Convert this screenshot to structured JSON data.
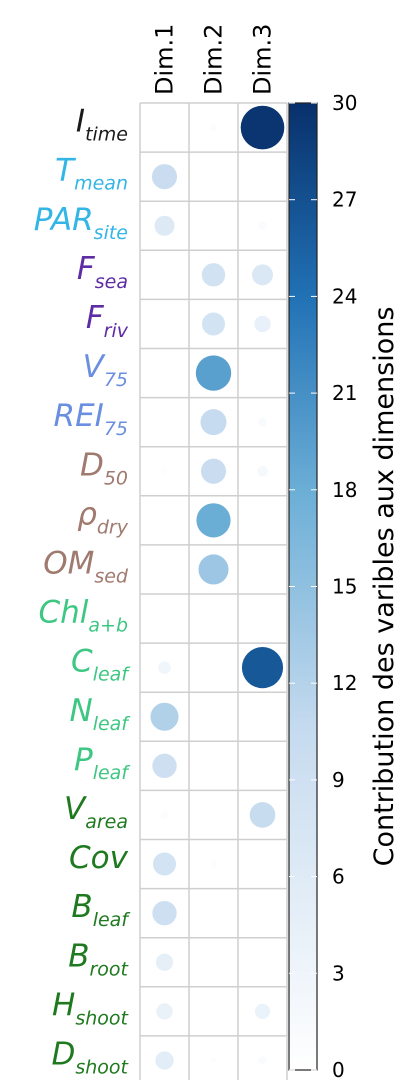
{
  "chart_data": {
    "type": "heatmap",
    "subtype": "correlation-plot-circles",
    "columns": [
      "Dim.1",
      "Dim.2",
      "Dim.3"
    ],
    "rows": [
      {
        "label": "I",
        "sub": "time",
        "style": "italic",
        "color": "#1a1a1a",
        "values": [
          0.2,
          0.8,
          29.5
        ]
      },
      {
        "label": "T",
        "sub": "mean",
        "style": "italic",
        "color": "#33b5e5",
        "values": [
          9.8,
          0.1,
          0.2
        ]
      },
      {
        "label": "PAR",
        "sub": "site",
        "style": "italic",
        "color": "#33b5e5",
        "values": [
          6.2,
          0.0,
          1.1
        ]
      },
      {
        "label": "F",
        "sub": "sea",
        "style": "italic",
        "color": "#5e2ca5",
        "values": [
          0.1,
          8.5,
          6.8
        ]
      },
      {
        "label": "F",
        "sub": "riv",
        "style": "italic",
        "color": "#5e2ca5",
        "values": [
          0.1,
          8.2,
          4.2
        ]
      },
      {
        "label": "V",
        "sub": "75",
        "style": "italic",
        "color": "#6a8fe0",
        "values": [
          0.1,
          19.4,
          0.2
        ]
      },
      {
        "label": "REI",
        "sub": "75",
        "style": "italic",
        "color": "#6a8fe0",
        "values": [
          0.1,
          10.5,
          1.2
        ]
      },
      {
        "label": "D",
        "sub": "50",
        "style": "italic",
        "color": "#a07a6e",
        "values": [
          0.5,
          9.8,
          1.8
        ]
      },
      {
        "label": "ρ",
        "sub": "dry",
        "style": "italic",
        "color": "#a07a6e",
        "values": [
          0.2,
          18.1,
          0.2
        ]
      },
      {
        "label": "OM",
        "sub": "sed",
        "style": "italic",
        "color": "#a07a6e",
        "values": [
          0.1,
          14.0,
          0.2
        ]
      },
      {
        "label": "Chl",
        "sub": "a+b",
        "style": "italic",
        "color": "#3dc782",
        "values": [
          0.0,
          0.1,
          0.1
        ]
      },
      {
        "label": "C",
        "sub": "leaf",
        "style": "italic",
        "color": "#3dc782",
        "values": [
          2.5,
          0.1,
          26.3
        ]
      },
      {
        "label": "N",
        "sub": "leaf",
        "style": "italic",
        "color": "#3dc782",
        "values": [
          12.2,
          0.1,
          0.2
        ]
      },
      {
        "label": "P",
        "sub": "leaf",
        "style": "italic",
        "color": "#3dc782",
        "values": [
          9.2,
          0.3,
          0.1
        ]
      },
      {
        "label": "V",
        "sub": "area",
        "style": "italic",
        "color": "#1f7a1f",
        "values": [
          1.0,
          0.2,
          10.2
        ]
      },
      {
        "label": "Cov",
        "sub": "",
        "style": "italic",
        "color": "#1f7a1f",
        "values": [
          8.2,
          0.6,
          0.4
        ]
      },
      {
        "label": "B",
        "sub": "leaf",
        "style": "italic",
        "color": "#1f7a1f",
        "values": [
          9.2,
          0.2,
          0.1
        ]
      },
      {
        "label": "B",
        "sub": "root",
        "style": "italic",
        "color": "#1f7a1f",
        "values": [
          4.6,
          0.1,
          0.1
        ]
      },
      {
        "label": "H",
        "sub": "shoot",
        "style": "italic",
        "color": "#1f7a1f",
        "values": [
          4.1,
          0.1,
          3.6
        ]
      },
      {
        "label": "D",
        "sub": "shoot",
        "style": "italic",
        "color": "#1f7a1f",
        "values": [
          5.2,
          0.5,
          1.1
        ]
      }
    ],
    "colorbar": {
      "min": 0,
      "max": 30,
      "ticks": [
        "0",
        "3",
        "6",
        "9",
        "12",
        "15",
        "18",
        "21",
        "24",
        "27",
        "30"
      ],
      "color_low": "#ffffff",
      "color_mid": "#9ecae1",
      "color_high": "#08306b",
      "label": "Contribution des varibles aux dimensions"
    },
    "grid": true
  }
}
